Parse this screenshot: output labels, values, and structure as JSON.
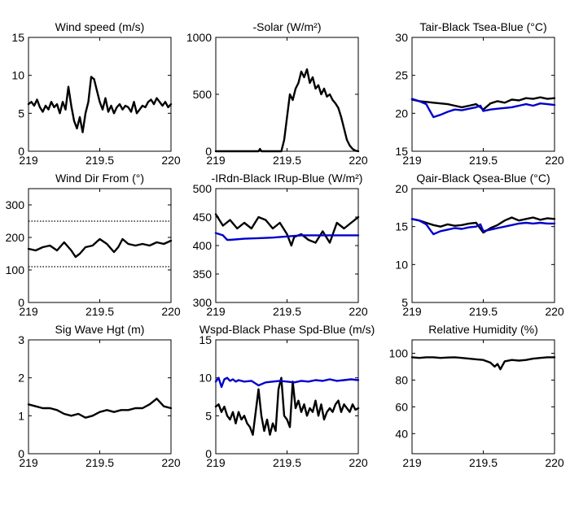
{
  "chart_data": [
    {
      "type": "line",
      "title": "Wind speed (m/s)",
      "xlim": [
        219,
        220
      ],
      "ylim": [
        0,
        15
      ],
      "xticks": [
        "219",
        "219.5",
        "220"
      ],
      "yticks": [
        "0",
        "5",
        "10",
        "15"
      ],
      "series": [
        {
          "color": "#000000",
          "x": [
            219.0,
            219.02,
            219.04,
            219.06,
            219.08,
            219.1,
            219.12,
            219.14,
            219.16,
            219.18,
            219.2,
            219.22,
            219.24,
            219.26,
            219.28,
            219.3,
            219.32,
            219.34,
            219.36,
            219.38,
            219.4,
            219.42,
            219.44,
            219.46,
            219.48,
            219.5,
            219.52,
            219.54,
            219.56,
            219.58,
            219.6,
            219.62,
            219.64,
            219.66,
            219.68,
            219.7,
            219.72,
            219.74,
            219.76,
            219.78,
            219.8,
            219.82,
            219.84,
            219.86,
            219.88,
            219.9,
            219.92,
            219.94,
            219.96,
            219.98,
            220.0
          ],
          "values": [
            6.2,
            6.5,
            6.0,
            6.8,
            5.8,
            5.2,
            6.0,
            5.5,
            6.5,
            5.8,
            6.2,
            5.0,
            6.5,
            5.5,
            8.5,
            6.0,
            4.0,
            3.0,
            4.5,
            2.5,
            5.0,
            6.5,
            9.8,
            9.5,
            8.0,
            6.5,
            5.5,
            7.0,
            5.2,
            6.0,
            5.0,
            5.8,
            6.2,
            5.5,
            6.0,
            5.8,
            5.2,
            6.5,
            5.0,
            5.5,
            6.0,
            5.8,
            6.5,
            6.8,
            6.2,
            7.0,
            6.5,
            6.0,
            6.5,
            5.8,
            6.2
          ]
        }
      ]
    },
    {
      "type": "line",
      "title": "-Solar (W/m²)",
      "xlim": [
        219,
        220
      ],
      "ylim": [
        0,
        1000
      ],
      "xticks": [
        "219",
        "219.5",
        "220"
      ],
      "yticks": [
        "0",
        "500",
        "1000"
      ],
      "series": [
        {
          "color": "#000000",
          "x": [
            219.0,
            219.3,
            219.31,
            219.32,
            219.46,
            219.48,
            219.5,
            219.52,
            219.54,
            219.56,
            219.58,
            219.6,
            219.62,
            219.64,
            219.66,
            219.68,
            219.7,
            219.72,
            219.74,
            219.76,
            219.78,
            219.8,
            219.82,
            219.84,
            219.86,
            219.88,
            219.9,
            219.92,
            219.94,
            219.96,
            219.98,
            220.0
          ],
          "values": [
            0,
            0,
            20,
            0,
            0,
            100,
            300,
            500,
            450,
            550,
            600,
            700,
            650,
            720,
            600,
            650,
            550,
            580,
            500,
            550,
            480,
            500,
            450,
            420,
            380,
            300,
            200,
            100,
            50,
            20,
            5,
            0
          ]
        }
      ]
    },
    {
      "type": "line",
      "title": "Tair-Black  Tsea-Blue (°C)",
      "xlim": [
        219,
        220
      ],
      "ylim": [
        15,
        30
      ],
      "xticks": [
        "219",
        "219.5",
        "220"
      ],
      "yticks": [
        "15",
        "20",
        "25",
        "30"
      ],
      "series": [
        {
          "color": "#000000",
          "x": [
            219.0,
            219.05,
            219.1,
            219.15,
            219.2,
            219.25,
            219.3,
            219.35,
            219.4,
            219.45,
            219.5,
            219.55,
            219.6,
            219.65,
            219.7,
            219.75,
            219.8,
            219.85,
            219.9,
            219.95,
            220.0
          ],
          "values": [
            21.8,
            21.6,
            21.5,
            21.4,
            21.3,
            21.2,
            21.0,
            20.8,
            21.0,
            21.2,
            20.5,
            21.3,
            21.6,
            21.4,
            21.8,
            21.7,
            22.0,
            21.9,
            22.1,
            21.9,
            22.0
          ]
        },
        {
          "color": "#0000cc",
          "x": [
            219.0,
            219.05,
            219.1,
            219.12,
            219.15,
            219.2,
            219.25,
            219.3,
            219.35,
            219.4,
            219.45,
            219.48,
            219.5,
            219.55,
            219.6,
            219.65,
            219.7,
            219.75,
            219.8,
            219.85,
            219.9,
            219.95,
            220.0
          ],
          "values": [
            21.9,
            21.6,
            21.2,
            20.5,
            19.5,
            19.8,
            20.2,
            20.5,
            20.4,
            20.6,
            20.8,
            21.0,
            20.3,
            20.5,
            20.6,
            20.7,
            20.8,
            21.0,
            21.2,
            21.0,
            21.3,
            21.2,
            21.1
          ]
        }
      ]
    },
    {
      "type": "line",
      "title": "Wind Dir From (°)",
      "xlim": [
        219,
        220
      ],
      "ylim": [
        0,
        350
      ],
      "xticks": [
        "219",
        "219.5",
        "220"
      ],
      "yticks": [
        "0",
        "100",
        "200",
        "300"
      ],
      "hlines": [
        250,
        110
      ],
      "series": [
        {
          "color": "#000000",
          "x": [
            219.0,
            219.05,
            219.1,
            219.15,
            219.2,
            219.25,
            219.3,
            219.33,
            219.36,
            219.4,
            219.45,
            219.5,
            219.55,
            219.6,
            219.63,
            219.66,
            219.7,
            219.75,
            219.8,
            219.85,
            219.9,
            219.95,
            220.0
          ],
          "values": [
            165,
            160,
            170,
            175,
            160,
            185,
            160,
            140,
            150,
            170,
            175,
            195,
            180,
            155,
            170,
            195,
            180,
            175,
            180,
            175,
            185,
            180,
            190
          ]
        }
      ]
    },
    {
      "type": "line",
      "title": "-IRdn-Black  IRup-Blue (W/m²)",
      "xlim": [
        219,
        220
      ],
      "ylim": [
        300,
        500
      ],
      "xticks": [
        "219",
        "219.5",
        "220"
      ],
      "yticks": [
        "300",
        "350",
        "400",
        "450",
        "500"
      ],
      "series": [
        {
          "color": "#000000",
          "x": [
            219.0,
            219.05,
            219.1,
            219.15,
            219.2,
            219.25,
            219.3,
            219.35,
            219.4,
            219.45,
            219.5,
            219.53,
            219.55,
            219.6,
            219.65,
            219.7,
            219.75,
            219.8,
            219.85,
            219.9,
            219.95,
            220.0
          ],
          "values": [
            455,
            435,
            445,
            430,
            440,
            430,
            450,
            445,
            430,
            440,
            420,
            400,
            415,
            420,
            410,
            405,
            425,
            405,
            440,
            430,
            440,
            450
          ]
        },
        {
          "color": "#0000cc",
          "x": [
            219.0,
            219.05,
            219.08,
            219.1,
            219.2,
            219.3,
            219.4,
            219.5,
            219.6,
            219.7,
            219.8,
            219.9,
            220.0
          ],
          "values": [
            422,
            418,
            410,
            410,
            412,
            413,
            414,
            416,
            418,
            418,
            418,
            418,
            418
          ]
        }
      ]
    },
    {
      "type": "line",
      "title": "Qair-Black  Qsea-Blue (°C)",
      "xlim": [
        219,
        220
      ],
      "ylim": [
        5,
        20
      ],
      "xticks": [
        "219",
        "219.5",
        "220"
      ],
      "yticks": [
        "5",
        "10",
        "15",
        "20"
      ],
      "series": [
        {
          "color": "#000000",
          "x": [
            219.0,
            219.05,
            219.1,
            219.15,
            219.2,
            219.25,
            219.3,
            219.35,
            219.4,
            219.45,
            219.5,
            219.55,
            219.6,
            219.65,
            219.7,
            219.75,
            219.8,
            219.85,
            219.9,
            219.95,
            220.0
          ],
          "values": [
            16.0,
            15.8,
            15.5,
            15.2,
            15.0,
            15.3,
            15.1,
            15.2,
            15.4,
            15.5,
            14.2,
            14.8,
            15.2,
            15.8,
            16.2,
            15.8,
            16.0,
            16.2,
            15.9,
            16.1,
            16.0
          ]
        },
        {
          "color": "#0000cc",
          "x": [
            219.0,
            219.05,
            219.1,
            219.13,
            219.15,
            219.2,
            219.25,
            219.3,
            219.35,
            219.4,
            219.45,
            219.48,
            219.5,
            219.55,
            219.6,
            219.65,
            219.7,
            219.75,
            219.8,
            219.85,
            219.9,
            219.95,
            220.0
          ],
          "values": [
            16.0,
            15.8,
            15.3,
            14.5,
            14.0,
            14.4,
            14.6,
            14.8,
            14.7,
            14.9,
            15.0,
            15.3,
            14.4,
            14.6,
            14.8,
            15.0,
            15.2,
            15.4,
            15.5,
            15.4,
            15.5,
            15.4,
            15.4
          ]
        }
      ]
    },
    {
      "type": "line",
      "title": "Sig Wave Hgt (m)",
      "xlim": [
        219,
        220
      ],
      "ylim": [
        0,
        3
      ],
      "xticks": [
        "219",
        "219.5",
        "220"
      ],
      "yticks": [
        "0",
        "1",
        "2",
        "3"
      ],
      "series": [
        {
          "color": "#000000",
          "x": [
            219.0,
            219.05,
            219.1,
            219.15,
            219.2,
            219.25,
            219.3,
            219.35,
            219.4,
            219.45,
            219.5,
            219.55,
            219.6,
            219.65,
            219.7,
            219.75,
            219.8,
            219.85,
            219.9,
            219.95,
            220.0
          ],
          "values": [
            1.3,
            1.25,
            1.2,
            1.2,
            1.15,
            1.05,
            1.0,
            1.05,
            0.95,
            1.0,
            1.1,
            1.15,
            1.1,
            1.15,
            1.15,
            1.2,
            1.2,
            1.3,
            1.45,
            1.25,
            1.2
          ]
        }
      ]
    },
    {
      "type": "line",
      "title": "Wspd-Black  Phase Spd-Blue (m/s)",
      "xlim": [
        219,
        220
      ],
      "ylim": [
        0,
        15
      ],
      "xticks": [
        "219",
        "219.5",
        "220"
      ],
      "yticks": [
        "0",
        "5",
        "10",
        "15"
      ],
      "series": [
        {
          "color": "#000000",
          "x": [
            219.0,
            219.02,
            219.04,
            219.06,
            219.08,
            219.1,
            219.12,
            219.14,
            219.16,
            219.18,
            219.2,
            219.22,
            219.24,
            219.26,
            219.28,
            219.3,
            219.32,
            219.34,
            219.36,
            219.38,
            219.4,
            219.42,
            219.44,
            219.46,
            219.48,
            219.5,
            219.52,
            219.54,
            219.56,
            219.58,
            219.6,
            219.62,
            219.64,
            219.66,
            219.68,
            219.7,
            219.72,
            219.74,
            219.76,
            219.78,
            219.8,
            219.82,
            219.84,
            219.86,
            219.88,
            219.9,
            219.92,
            219.94,
            219.96,
            219.98,
            220.0
          ],
          "values": [
            6.2,
            6.5,
            5.5,
            6.2,
            5.0,
            4.5,
            5.5,
            4.0,
            5.5,
            4.5,
            5.0,
            4.0,
            3.5,
            2.5,
            5.5,
            8.5,
            5.0,
            3.0,
            4.5,
            2.5,
            4.0,
            3.0,
            8.5,
            10.0,
            5.0,
            4.5,
            3.5,
            9.5,
            6.0,
            7.0,
            5.5,
            6.5,
            5.0,
            6.0,
            5.5,
            7.0,
            5.0,
            6.5,
            4.5,
            5.5,
            6.0,
            5.5,
            6.5,
            7.0,
            5.5,
            6.5,
            6.0,
            5.5,
            6.5,
            5.8,
            6.0
          ]
        },
        {
          "color": "#0000cc",
          "x": [
            219.0,
            219.02,
            219.04,
            219.06,
            219.08,
            219.1,
            219.12,
            219.14,
            219.16,
            219.2,
            219.25,
            219.3,
            219.35,
            219.4,
            219.45,
            219.5,
            219.55,
            219.6,
            219.65,
            219.7,
            219.75,
            219.8,
            219.85,
            219.9,
            219.95,
            220.0
          ],
          "values": [
            9.5,
            10.0,
            8.8,
            9.8,
            10.0,
            9.6,
            9.8,
            9.5,
            9.7,
            9.5,
            9.6,
            9.0,
            9.4,
            9.5,
            9.6,
            9.5,
            9.4,
            9.6,
            9.5,
            9.7,
            9.6,
            9.8,
            9.6,
            9.7,
            9.8,
            9.7
          ]
        }
      ]
    },
    {
      "type": "line",
      "title": "Relative Humidity (%)",
      "xlim": [
        219,
        220
      ],
      "ylim": [
        25,
        110
      ],
      "xticks": [
        "219",
        "219.5",
        "220"
      ],
      "yticks": [
        "40",
        "60",
        "80",
        "100"
      ],
      "series": [
        {
          "color": "#000000",
          "x": [
            219.0,
            219.05,
            219.1,
            219.15,
            219.2,
            219.25,
            219.3,
            219.35,
            219.4,
            219.45,
            219.5,
            219.55,
            219.58,
            219.6,
            219.62,
            219.65,
            219.7,
            219.75,
            219.8,
            219.85,
            219.9,
            219.95,
            220.0
          ],
          "values": [
            97,
            96.5,
            97,
            97,
            96.5,
            96.8,
            97,
            96.5,
            96,
            95.5,
            95,
            93,
            90,
            92,
            88,
            94,
            95,
            94.5,
            95,
            96,
            96.5,
            97,
            97
          ]
        }
      ]
    }
  ]
}
